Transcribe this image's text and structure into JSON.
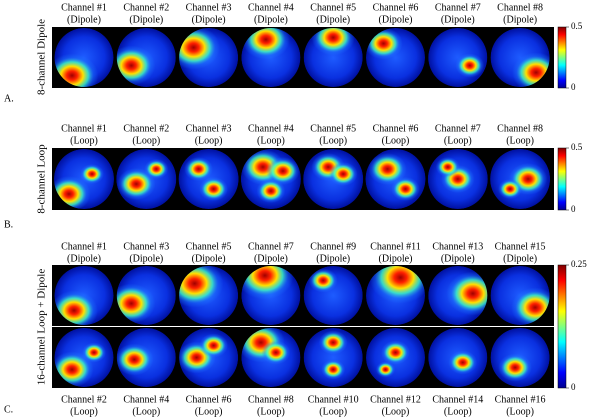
{
  "panels": [
    {
      "letter": "A.",
      "row_label": "8-channel Dipole",
      "colorbar": {
        "ticks": [
          0.5,
          0
        ]
      },
      "rows": [
        {
          "channels": [
            {
              "name": "Channel #1",
              "kind": "(Dipole)"
            },
            {
              "name": "Channel #2",
              "kind": "(Dipole)"
            },
            {
              "name": "Channel #3",
              "kind": "(Dipole)"
            },
            {
              "name": "Channel #4",
              "kind": "(Dipole)"
            },
            {
              "name": "Channel #5",
              "kind": "(Dipole)"
            },
            {
              "name": "Channel #6",
              "kind": "(Dipole)"
            },
            {
              "name": "Channel #7",
              "kind": "(Dipole)"
            },
            {
              "name": "Channel #8",
              "kind": "(Dipole)"
            }
          ]
        }
      ]
    },
    {
      "letter": "B.",
      "row_label": "8-channel Loop",
      "colorbar": {
        "ticks": [
          0.5,
          0
        ]
      },
      "rows": [
        {
          "channels": [
            {
              "name": "Channel #1",
              "kind": "(Loop)"
            },
            {
              "name": "Channel #2",
              "kind": "(Loop)"
            },
            {
              "name": "Channel #3",
              "kind": "(Loop)"
            },
            {
              "name": "Channel #4",
              "kind": "(Loop)"
            },
            {
              "name": "Channel #5",
              "kind": "(Loop)"
            },
            {
              "name": "Channel #6",
              "kind": "(Loop)"
            },
            {
              "name": "Channel #7",
              "kind": "(Loop)"
            },
            {
              "name": "Channel #8",
              "kind": "(Loop)"
            }
          ]
        }
      ]
    },
    {
      "letter": "C.",
      "row_label": "16-channel Loop + Dipole",
      "colorbar": {
        "ticks": [
          0.25,
          0
        ]
      },
      "rows": [
        {
          "channels": [
            {
              "name": "Channel #1",
              "kind": "(Dipole)"
            },
            {
              "name": "Channel #3",
              "kind": "(Dipole)"
            },
            {
              "name": "Channel #5",
              "kind": "(Dipole)"
            },
            {
              "name": "Channel #7",
              "kind": "(Dipole)"
            },
            {
              "name": "Channel #9",
              "kind": "(Dipole)"
            },
            {
              "name": "Channel #11",
              "kind": "(Dipole)"
            },
            {
              "name": "Channel #13",
              "kind": "(Dipole)"
            },
            {
              "name": "Channel #15",
              "kind": "(Dipole)"
            }
          ]
        },
        {
          "channels": [
            {
              "name": "Channel #2",
              "kind": "(Loop)"
            },
            {
              "name": "Channel #4",
              "kind": "(Loop)"
            },
            {
              "name": "Channel #6",
              "kind": "(Loop)"
            },
            {
              "name": "Channel #8",
              "kind": "(Loop)"
            },
            {
              "name": "Channel #10",
              "kind": "(Loop)"
            },
            {
              "name": "Channel #12",
              "kind": "(Loop)"
            },
            {
              "name": "Channel #14",
              "kind": "(Loop)"
            },
            {
              "name": "Channel #16",
              "kind": "(Loop)"
            }
          ]
        }
      ]
    }
  ]
}
